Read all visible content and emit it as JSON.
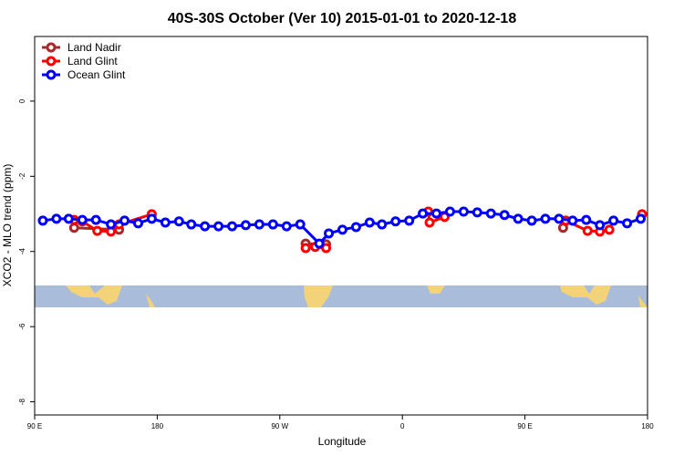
{
  "chart_data": {
    "type": "line",
    "title": "40S-30S October (Ver 10)   2015-01-01 to 2020-12-18",
    "x_label": "Longitude",
    "y_label": "XCO2 - MLO trend (ppm)",
    "xlim": [
      90,
      540
    ],
    "xticks": [
      {
        "value": 90,
        "label": "90 E"
      },
      {
        "value": 180,
        "label": "180"
      },
      {
        "value": 270,
        "label": "90 W"
      },
      {
        "value": 360,
        "label": "0"
      },
      {
        "value": 450,
        "label": "90 E"
      },
      {
        "value": 540,
        "label": "180"
      }
    ],
    "ylim": [
      -8.35,
      1.72
    ],
    "yticks": [
      0,
      -2,
      -4,
      -6,
      -8
    ],
    "legend": "top-left",
    "series": [
      {
        "name": "Land Nadir",
        "color": "#a52a2a",
        "x": [
          119,
          152,
          200,
          289,
          304,
          400,
          478
        ],
        "values": [
          -3.37,
          -3.42,
          null,
          -3.79,
          -3.81,
          null,
          -3.37
        ]
      },
      {
        "name": "Land Glint",
        "color": "#ff0000",
        "x": [
          119,
          125,
          136,
          146,
          152,
          176,
          200,
          289,
          296,
          304,
          340,
          379,
          380,
          391,
          450,
          480,
          496,
          505,
          512,
          520,
          536
        ],
        "values": [
          -3.16,
          -3.2,
          -3.45,
          -3.47,
          -3.28,
          -3.01,
          null,
          -3.91,
          -3.88,
          -3.91,
          null,
          -2.94,
          -3.23,
          -3.08,
          null,
          -3.18,
          -3.45,
          -3.47,
          -3.42,
          null,
          -3.01
        ]
      },
      {
        "name": "Ocean Glint",
        "color": "#0000ff",
        "x": [
          96,
          106,
          115,
          125,
          135,
          146,
          156,
          166,
          176,
          186,
          196,
          205,
          215,
          225,
          235,
          245,
          255,
          265,
          275,
          285,
          299,
          306,
          316,
          326,
          336,
          345,
          355,
          365,
          375,
          385,
          395,
          405,
          415,
          425,
          435,
          445,
          455,
          465,
          475,
          485,
          495,
          505,
          515,
          525,
          535
        ],
        "values": [
          -3.18,
          -3.13,
          -3.13,
          -3.16,
          -3.16,
          -3.28,
          -3.18,
          -3.25,
          -3.13,
          -3.23,
          -3.2,
          -3.28,
          -3.33,
          -3.33,
          -3.33,
          -3.3,
          -3.28,
          -3.28,
          -3.33,
          -3.28,
          -3.79,
          -3.52,
          -3.42,
          -3.35,
          -3.23,
          -3.28,
          -3.2,
          -3.18,
          -2.99,
          -2.99,
          -2.94,
          -2.94,
          -2.96,
          -2.99,
          -3.03,
          -3.13,
          -3.18,
          -3.13,
          -3.13,
          -3.18,
          -3.16,
          -3.3,
          -3.18,
          -3.25,
          -3.13
        ]
      }
    ]
  }
}
